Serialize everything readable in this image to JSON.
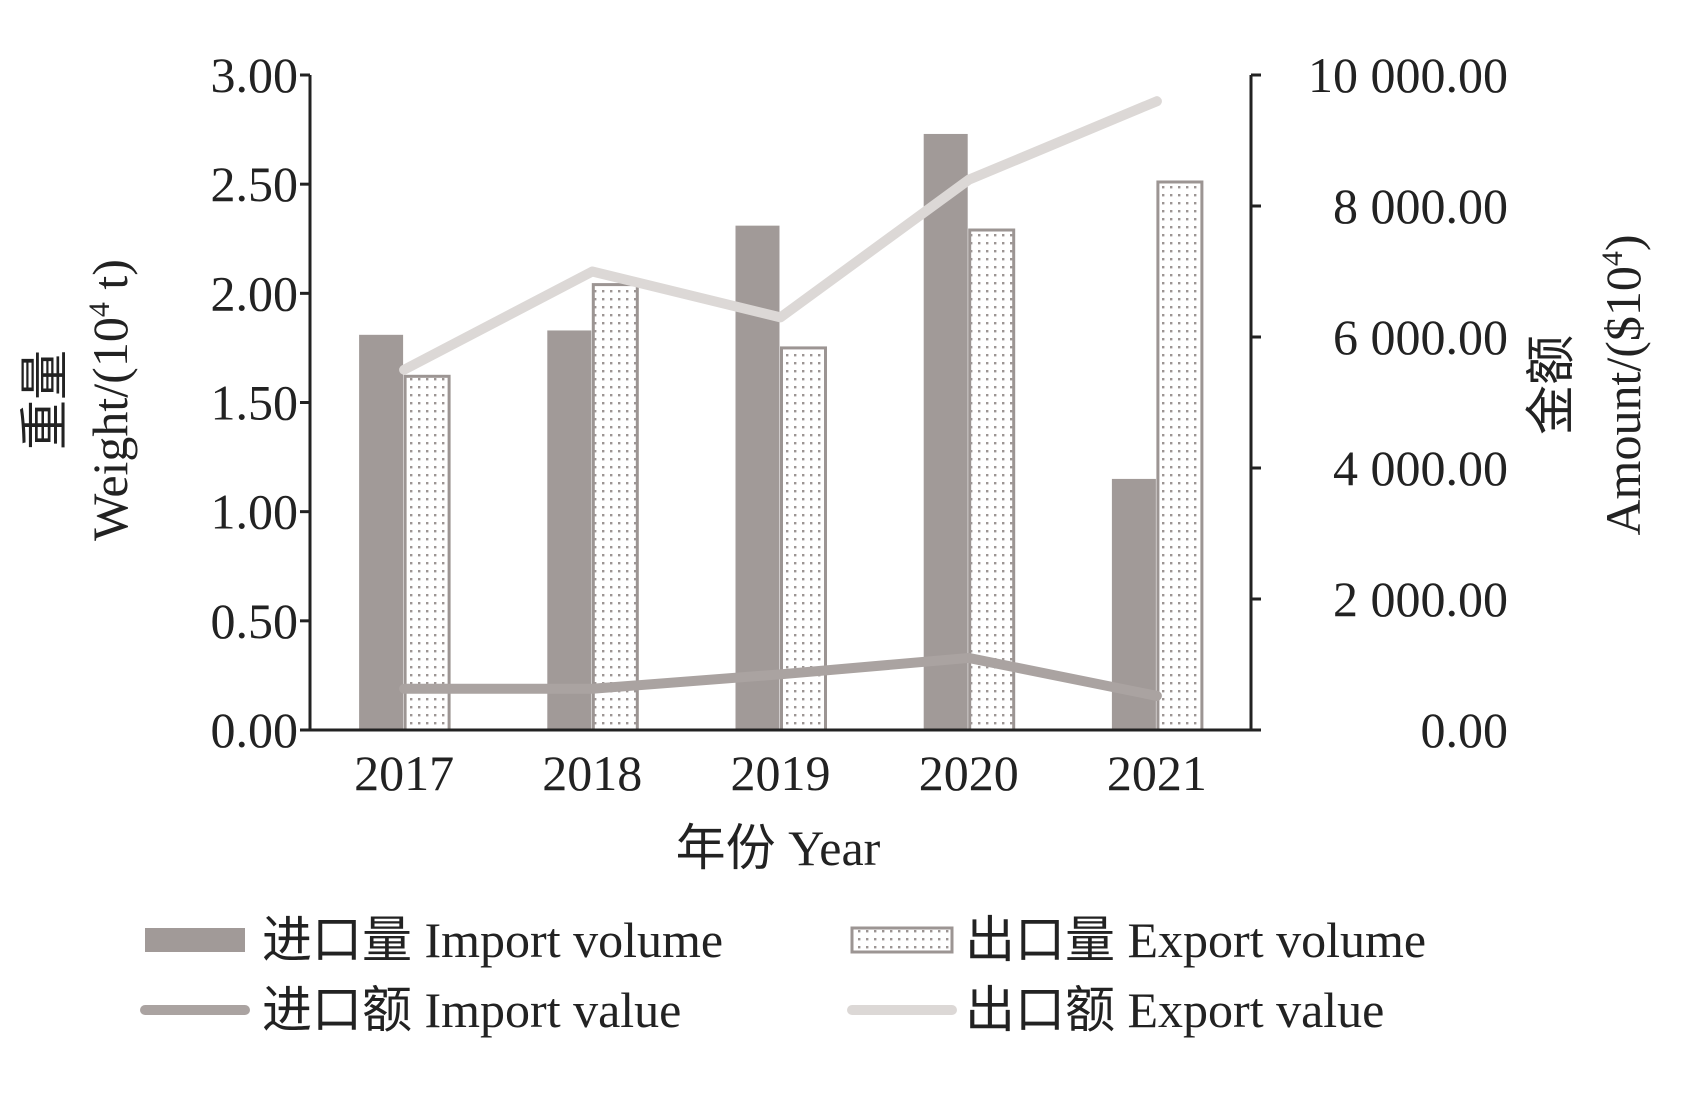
{
  "chart_data": {
    "type": "bar",
    "categories": [
      "2017",
      "2018",
      "2019",
      "2020",
      "2021"
    ],
    "series": [
      {
        "name": "进口量 Import volume",
        "type": "bar",
        "axis": "left",
        "pattern": "solid",
        "color": "#a19a98",
        "values": [
          1.81,
          1.83,
          2.31,
          2.73,
          1.15
        ]
      },
      {
        "name": "出口量 Export volume",
        "type": "bar",
        "axis": "left",
        "pattern": "dots",
        "color": "#a19a98",
        "values": [
          1.62,
          2.04,
          1.75,
          2.29,
          2.51
        ]
      },
      {
        "name": "进口额 Import value",
        "type": "line",
        "axis": "right",
        "color": "#aaa3a1",
        "values": [
          630,
          630,
          850,
          1100,
          520
        ]
      },
      {
        "name": "出口额 Export value",
        "type": "line",
        "axis": "right",
        "color": "#dcd8d6",
        "values": [
          5500,
          7000,
          6300,
          8400,
          9600
        ]
      }
    ],
    "left_axis": {
      "label_cn": "重量",
      "label_en": "Weight/(10",
      "label_sup": "4",
      "label_tail": " t)",
      "ylim": [
        0,
        3
      ],
      "ticks": [
        "0.00",
        "0.50",
        "1.00",
        "1.50",
        "2.00",
        "2.50",
        "3.00"
      ]
    },
    "right_axis": {
      "label_cn": "金额",
      "label_en": "Amount/($10",
      "label_sup": "4",
      "label_tail": ")",
      "ylim": [
        0,
        10000
      ],
      "ticks": [
        "0.00",
        "2 000.00",
        "4 000.00",
        "6 000.00",
        "8 000.00",
        "10 000.00"
      ]
    },
    "xlabel": "年份 Year",
    "legend_position": "bottom"
  }
}
